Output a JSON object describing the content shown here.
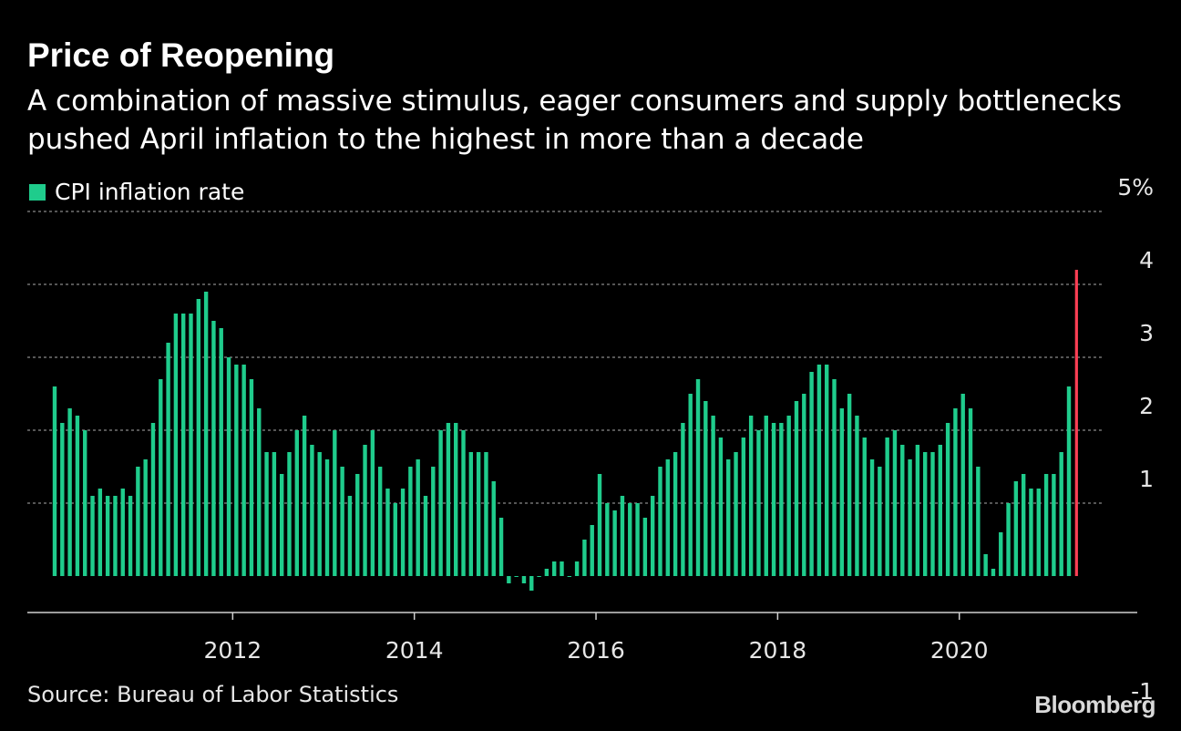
{
  "title": "Price of Reopening",
  "subtitle": "A combination of massive stimulus, eager consumers and supply bottlenecks pushed April inflation to the highest in more than a decade",
  "source": "Source: Bureau of Labor Statistics",
  "brand": "Bloomberg",
  "colors": {
    "background": "#000000",
    "bar": "#1fcc8c",
    "highlight": "#ff3f55",
    "grid": "#8a8a8a",
    "text": "#ffffff"
  },
  "chart_data": {
    "type": "bar",
    "legend": {
      "entries": [
        "CPI inflation rate"
      ],
      "placement": "top-left"
    },
    "ylabel": "",
    "y_ticks": [
      {
        "value": 5,
        "label": "5%"
      },
      {
        "value": 4,
        "label": "4"
      },
      {
        "value": 3,
        "label": "3"
      },
      {
        "value": 2,
        "label": "2"
      },
      {
        "value": 1,
        "label": "1"
      },
      {
        "value": -1,
        "label": "-1"
      }
    ],
    "ylim": [
      -1,
      5
    ],
    "zero_line": 0,
    "grid": true,
    "x_start": "2010-01",
    "x_ticks": [
      "2012",
      "2014",
      "2016",
      "2018",
      "2020"
    ],
    "highlight": {
      "month": "2021-04",
      "value": 4.2
    },
    "series": [
      {
        "values": [
          2.6,
          2.1,
          2.3,
          2.2,
          2.0,
          1.1,
          1.2,
          1.1,
          1.1,
          1.2,
          1.1,
          1.5,
          1.6,
          2.1,
          2.7,
          3.2,
          3.6,
          3.6,
          3.6,
          3.8,
          3.9,
          3.5,
          3.4,
          3.0,
          2.9,
          2.9,
          2.7,
          2.3,
          1.7,
          1.7,
          1.4,
          1.7,
          2.0,
          2.2,
          1.8,
          1.7,
          1.6,
          2.0,
          1.5,
          1.1,
          1.4,
          1.8,
          2.0,
          1.5,
          1.2,
          1.0,
          1.2,
          1.5,
          1.6,
          1.1,
          1.5,
          2.0,
          2.1,
          2.1,
          2.0,
          1.7,
          1.7,
          1.7,
          1.3,
          0.8,
          -0.1,
          0.0,
          -0.1,
          -0.2,
          0.0,
          0.1,
          0.2,
          0.2,
          0.0,
          0.2,
          0.5,
          0.7,
          1.4,
          1.0,
          0.9,
          1.1,
          1.0,
          1.0,
          0.8,
          1.1,
          1.5,
          1.6,
          1.7,
          2.1,
          2.5,
          2.7,
          2.4,
          2.2,
          1.9,
          1.6,
          1.7,
          1.9,
          2.2,
          2.0,
          2.2,
          2.1,
          2.1,
          2.2,
          2.4,
          2.5,
          2.8,
          2.9,
          2.9,
          2.7,
          2.3,
          2.5,
          2.2,
          1.9,
          1.6,
          1.5,
          1.9,
          2.0,
          1.8,
          1.6,
          1.8,
          1.7,
          1.7,
          1.8,
          2.1,
          2.3,
          2.5,
          2.3,
          1.5,
          0.3,
          0.1,
          0.6,
          1.0,
          1.3,
          1.4,
          1.2,
          1.2,
          1.4,
          1.4,
          1.7,
          2.6,
          4.2
        ]
      }
    ]
  }
}
